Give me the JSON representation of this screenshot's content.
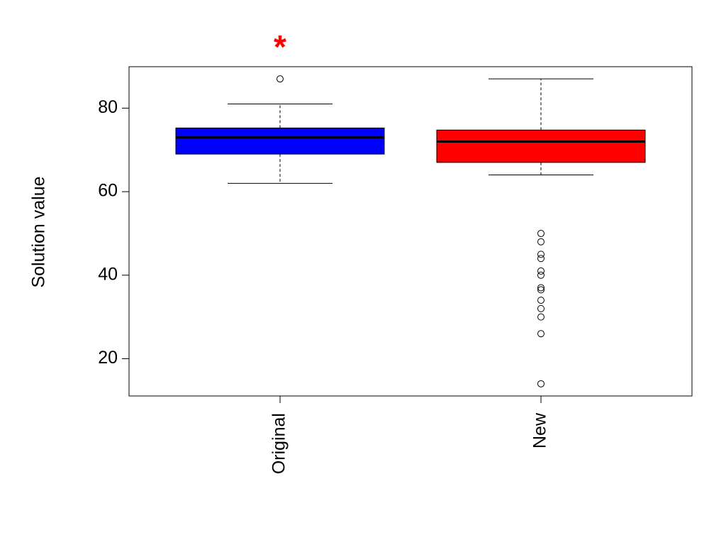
{
  "chart_data": {
    "type": "box",
    "ylabel": "Solution value",
    "annotation": "*",
    "annotation_color": "#ff0000",
    "categories": [
      "Original",
      "New"
    ],
    "colors": [
      "#0000ff",
      "#ff0000"
    ],
    "boxes": [
      {
        "whisker_low": 62,
        "q1": 69,
        "median": 73,
        "q3": 75.25,
        "whisker_high": 81,
        "outliers": [
          87
        ]
      },
      {
        "whisker_low": 64,
        "q1": 67,
        "median": 72,
        "q3": 74.75,
        "whisker_high": 87,
        "outliers": [
          50,
          48,
          45,
          44,
          41,
          40,
          37,
          36.5,
          34,
          32,
          30,
          26,
          14
        ]
      }
    ],
    "ylim": [
      11.08,
      89.92
    ],
    "yticks": [
      20,
      40,
      60,
      80
    ]
  }
}
